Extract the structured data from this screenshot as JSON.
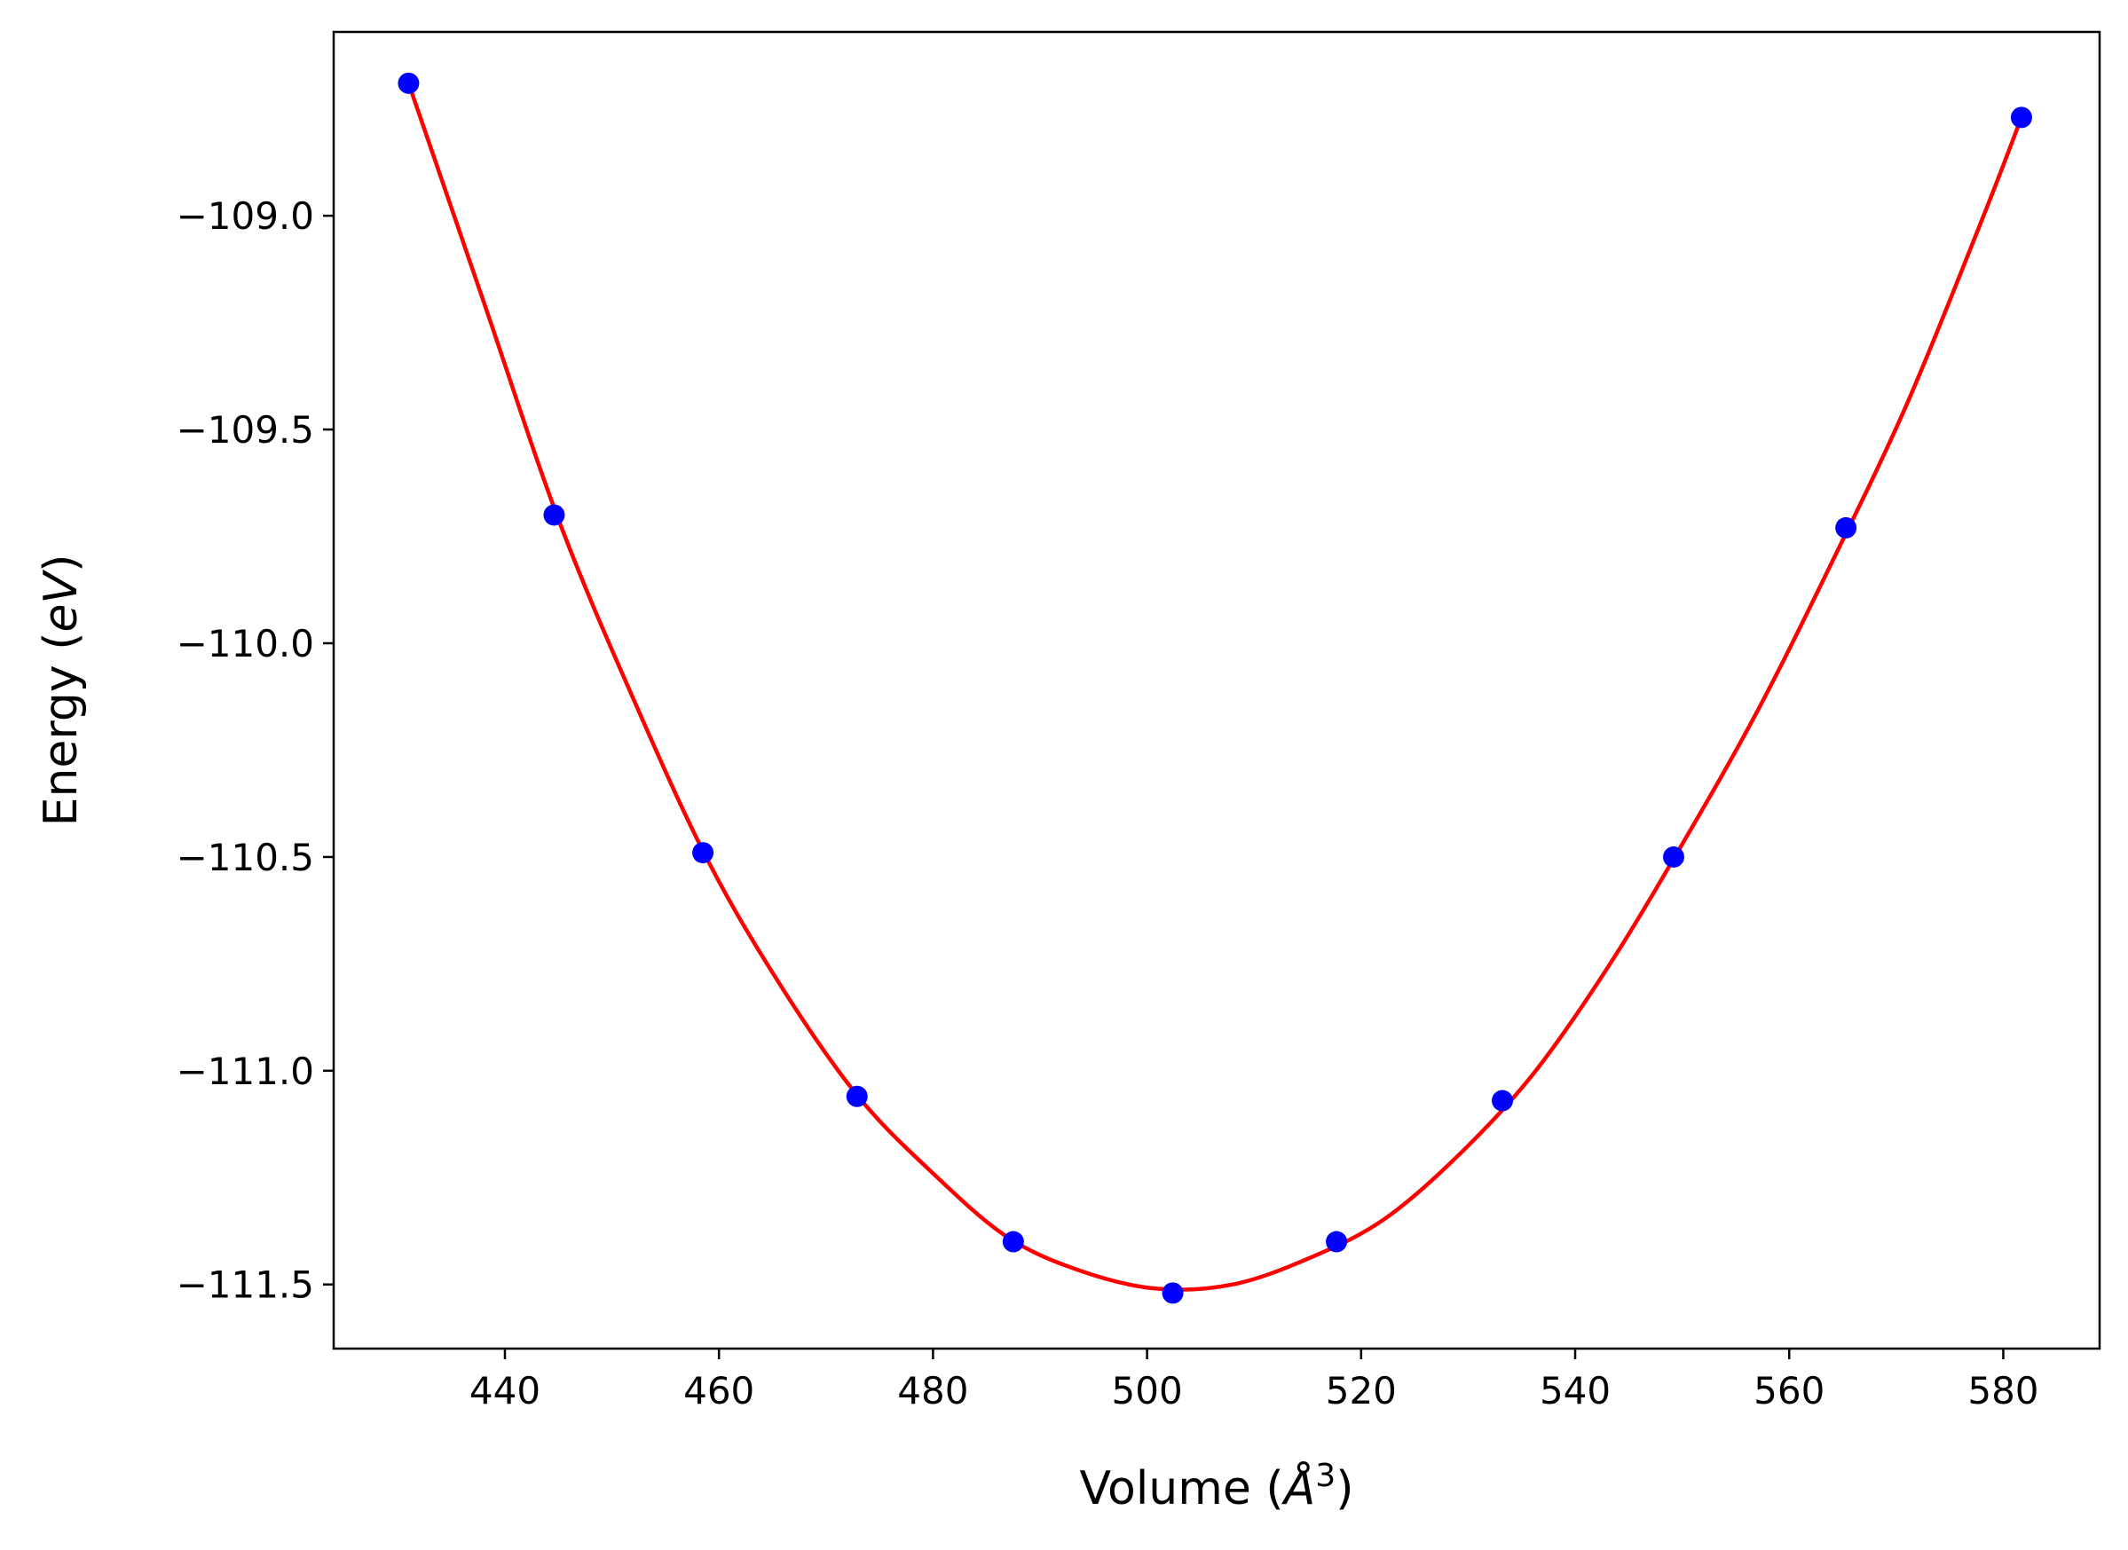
{
  "chart_data": {
    "type": "scatter",
    "title": "",
    "xlabel": {
      "prefix": "Volume (",
      "var": "Å",
      "sup": "3",
      "suffix": ")"
    },
    "ylabel": {
      "prefix": "Energy (",
      "var": "eV",
      "suffix": ")"
    },
    "xlim": [
      424,
      589
    ],
    "ylim": [
      -111.65,
      -108.57
    ],
    "xticks": [
      440,
      460,
      480,
      500,
      520,
      540,
      560,
      580
    ],
    "xtick_labels": [
      "440",
      "460",
      "480",
      "500",
      "520",
      "540",
      "560",
      "580"
    ],
    "yticks": [
      -109.0,
      -109.5,
      -110.0,
      -110.5,
      -111.0,
      -111.5
    ],
    "ytick_labels": [
      "−109.0",
      "−109.5",
      "−110.0",
      "−110.5",
      "−111.0",
      "−111.5"
    ],
    "grid": false,
    "series": [
      {
        "kind": "points",
        "color": "#0000ff",
        "x": [
          431.0,
          444.6,
          458.5,
          472.9,
          487.5,
          502.4,
          517.7,
          533.2,
          549.2,
          565.3,
          581.7
        ],
        "y": [
          -108.69,
          -109.7,
          -110.49,
          -111.06,
          -111.4,
          -111.52,
          -111.4,
          -111.07,
          -110.5,
          -109.73,
          -108.77
        ]
      },
      {
        "kind": "fit-curve",
        "color": "#ff0000",
        "x": [
          431,
          438,
          445,
          452,
          459,
          466,
          473,
          480,
          487,
          494,
          501,
          508,
          515,
          522,
          529,
          536,
          543,
          550,
          557,
          564,
          571,
          578,
          581.7
        ],
        "y": [
          -108.69,
          -109.2,
          -109.71,
          -110.13,
          -110.51,
          -110.81,
          -111.06,
          -111.24,
          -111.39,
          -111.47,
          -111.51,
          -111.5,
          -111.44,
          -111.35,
          -111.2,
          -111.01,
          -110.76,
          -110.47,
          -110.16,
          -109.81,
          -109.44,
          -109.01,
          -108.77
        ]
      }
    ],
    "colors": {
      "points": "#0000ff",
      "curve": "#ff0000",
      "axes": "#000000"
    }
  }
}
